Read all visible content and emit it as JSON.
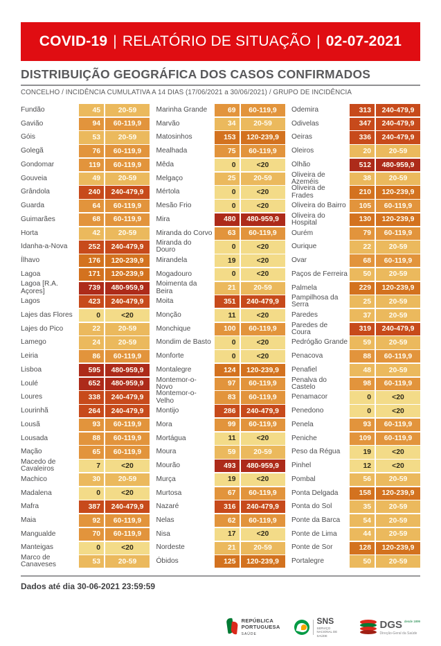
{
  "header": {
    "left": "COVID-19",
    "separator": "|",
    "middle": "RELATÓRIO DE SITUAÇÃO",
    "right": "02-07-2021",
    "bg_color": "#E00D12"
  },
  "section": {
    "title": "DISTRIBUIÇÃO GEOGRÁFICA DOS CASOS CONFIRMADOS",
    "subtitle": "CONCELHO / INCIDÊNCIA CUMULATIVA A 14 DIAS (17/06/2021 a 30/06/2021) / GRUPO DE INCIDÊNCIA"
  },
  "groups": {
    "lt20": {
      "label": "<20",
      "bg": "#F3DB88",
      "fg": "#2E2A1A"
    },
    "g20_59": {
      "label": "20-59",
      "bg": "#EBB95D",
      "fg": "#FFFDF2"
    },
    "g60_119": {
      "label": "60-119,9",
      "bg": "#E2943C",
      "fg": "#FFFDF2"
    },
    "g120_239": {
      "label": "120-239,9",
      "bg": "#D3721F",
      "fg": "#FFFDF2"
    },
    "g240_479": {
      "label": "240-479,9",
      "bg": "#C74A1B",
      "fg": "#FFFDF2"
    },
    "g480_959": {
      "label": "480-959,9",
      "bg": "#AD2B1A",
      "fg": "#FFFDF2"
    }
  },
  "table": {
    "columns": [
      [
        [
          "Fundão",
          "45",
          "g20_59"
        ],
        [
          "Gavião",
          "94",
          "g60_119"
        ],
        [
          "Góis",
          "53",
          "g20_59"
        ],
        [
          "Golegã",
          "76",
          "g60_119"
        ],
        [
          "Gondomar",
          "119",
          "g60_119"
        ],
        [
          "Gouveia",
          "49",
          "g20_59"
        ],
        [
          "Grândola",
          "240",
          "g240_479"
        ],
        [
          "Guarda",
          "64",
          "g60_119"
        ],
        [
          "Guimarães",
          "68",
          "g60_119"
        ],
        [
          "Horta",
          "42",
          "g20_59"
        ],
        [
          "Idanha-a-Nova",
          "252",
          "g240_479"
        ],
        [
          "Ílhavo",
          "176",
          "g120_239"
        ],
        [
          "Lagoa",
          "171",
          "g120_239"
        ],
        [
          "Lagoa [R.A. Açores]",
          "739",
          "g480_959"
        ],
        [
          "Lagos",
          "423",
          "g240_479"
        ],
        [
          "Lajes das Flores",
          "0",
          "lt20"
        ],
        [
          "Lajes do Pico",
          "22",
          "g20_59"
        ],
        [
          "Lamego",
          "24",
          "g20_59"
        ],
        [
          "Leiria",
          "86",
          "g60_119"
        ],
        [
          "Lisboa",
          "595",
          "g480_959"
        ],
        [
          "Loulé",
          "652",
          "g480_959"
        ],
        [
          "Loures",
          "338",
          "g240_479"
        ],
        [
          "Lourinhã",
          "264",
          "g240_479"
        ],
        [
          "Lousã",
          "93",
          "g60_119"
        ],
        [
          "Lousada",
          "88",
          "g60_119"
        ],
        [
          "Mação",
          "65",
          "g60_119"
        ],
        [
          "Macedo de Cavaleiros",
          "7",
          "lt20"
        ],
        [
          "Machico",
          "30",
          "g20_59"
        ],
        [
          "Madalena",
          "0",
          "lt20"
        ],
        [
          "Mafra",
          "387",
          "g240_479"
        ],
        [
          "Maia",
          "92",
          "g60_119"
        ],
        [
          "Mangualde",
          "70",
          "g60_119"
        ],
        [
          "Manteigas",
          "0",
          "lt20"
        ],
        [
          "Marco de Canaveses",
          "53",
          "g20_59"
        ]
      ],
      [
        [
          "Marinha Grande",
          "69",
          "g60_119"
        ],
        [
          "Marvão",
          "34",
          "g20_59"
        ],
        [
          "Matosinhos",
          "153",
          "g120_239"
        ],
        [
          "Mealhada",
          "75",
          "g60_119"
        ],
        [
          "Mêda",
          "0",
          "lt20"
        ],
        [
          "Melgaço",
          "25",
          "g20_59"
        ],
        [
          "Mértola",
          "0",
          "lt20"
        ],
        [
          "Mesão Frio",
          "0",
          "lt20"
        ],
        [
          "Mira",
          "480",
          "g480_959"
        ],
        [
          "Miranda do Corvo",
          "63",
          "g60_119"
        ],
        [
          "Miranda do Douro",
          "0",
          "lt20"
        ],
        [
          "Mirandela",
          "19",
          "lt20"
        ],
        [
          "Mogadouro",
          "0",
          "lt20"
        ],
        [
          "Moimenta da Beira",
          "21",
          "g20_59"
        ],
        [
          "Moita",
          "351",
          "g240_479"
        ],
        [
          "Monção",
          "11",
          "lt20"
        ],
        [
          "Monchique",
          "100",
          "g60_119"
        ],
        [
          "Mondim de Basto",
          "0",
          "lt20"
        ],
        [
          "Monforte",
          "0",
          "lt20"
        ],
        [
          "Montalegre",
          "124",
          "g120_239"
        ],
        [
          "Montemor-o-Novo",
          "97",
          "g60_119"
        ],
        [
          "Montemor-o-Velho",
          "83",
          "g60_119"
        ],
        [
          "Montijo",
          "286",
          "g240_479"
        ],
        [
          "Mora",
          "99",
          "g60_119"
        ],
        [
          "Mortágua",
          "11",
          "lt20"
        ],
        [
          "Moura",
          "59",
          "g20_59"
        ],
        [
          "Mourão",
          "493",
          "g480_959"
        ],
        [
          "Murça",
          "19",
          "lt20"
        ],
        [
          "Murtosa",
          "67",
          "g60_119"
        ],
        [
          "Nazaré",
          "316",
          "g240_479"
        ],
        [
          "Nelas",
          "62",
          "g60_119"
        ],
        [
          "Nisa",
          "17",
          "lt20"
        ],
        [
          "Nordeste",
          "21",
          "g20_59"
        ],
        [
          "Óbidos",
          "125",
          "g120_239"
        ]
      ],
      [
        [
          "Odemira",
          "313",
          "g240_479"
        ],
        [
          "Odivelas",
          "347",
          "g240_479"
        ],
        [
          "Oeiras",
          "336",
          "g240_479"
        ],
        [
          "Oleiros",
          "20",
          "g20_59"
        ],
        [
          "Olhão",
          "512",
          "g480_959"
        ],
        [
          "Oliveira de Azeméis",
          "38",
          "g20_59"
        ],
        [
          "Oliveira de Frades",
          "210",
          "g120_239"
        ],
        [
          "Oliveira do Bairro",
          "105",
          "g60_119"
        ],
        [
          "Oliveira do Hospital",
          "130",
          "g120_239"
        ],
        [
          "Ourém",
          "79",
          "g60_119"
        ],
        [
          "Ourique",
          "22",
          "g20_59"
        ],
        [
          "Ovar",
          "68",
          "g60_119"
        ],
        [
          "Paços de Ferreira",
          "50",
          "g20_59"
        ],
        [
          "Palmela",
          "229",
          "g120_239"
        ],
        [
          "Pampilhosa da Serra",
          "25",
          "g20_59"
        ],
        [
          "Paredes",
          "37",
          "g20_59"
        ],
        [
          "Paredes de Coura",
          "319",
          "g240_479"
        ],
        [
          "Pedrógão Grande",
          "59",
          "g20_59"
        ],
        [
          "Penacova",
          "88",
          "g60_119"
        ],
        [
          "Penafiel",
          "48",
          "g20_59"
        ],
        [
          "Penalva do Castelo",
          "98",
          "g60_119"
        ],
        [
          "Penamacor",
          "0",
          "lt20"
        ],
        [
          "Penedono",
          "0",
          "lt20"
        ],
        [
          "Penela",
          "93",
          "g60_119"
        ],
        [
          "Peniche",
          "109",
          "g60_119"
        ],
        [
          "Peso da Régua",
          "19",
          "lt20"
        ],
        [
          "Pinhel",
          "12",
          "lt20"
        ],
        [
          "Pombal",
          "56",
          "g20_59"
        ],
        [
          "Ponta Delgada",
          "158",
          "g120_239"
        ],
        [
          "Ponta do Sol",
          "35",
          "g20_59"
        ],
        [
          "Ponte da Barca",
          "54",
          "g20_59"
        ],
        [
          "Ponte de Lima",
          "44",
          "g20_59"
        ],
        [
          "Ponte de Sor",
          "128",
          "g120_239"
        ],
        [
          "Portalegre",
          "50",
          "g20_59"
        ]
      ]
    ]
  },
  "footer": {
    "note": "Dados até dia 30-06-2021 23:59:59",
    "logos": {
      "republica": {
        "line1": "REPÚBLICA",
        "line2": "PORTUGUESA",
        "sub": "SAÚDE"
      },
      "sns": {
        "big": "SNS",
        "sub": "SERVIÇO NACIONAL DE SAÚDE"
      },
      "dgs": {
        "big": "DGS",
        "desde": "desde 1899",
        "sub": "Direção-Geral da Saúde"
      }
    }
  }
}
